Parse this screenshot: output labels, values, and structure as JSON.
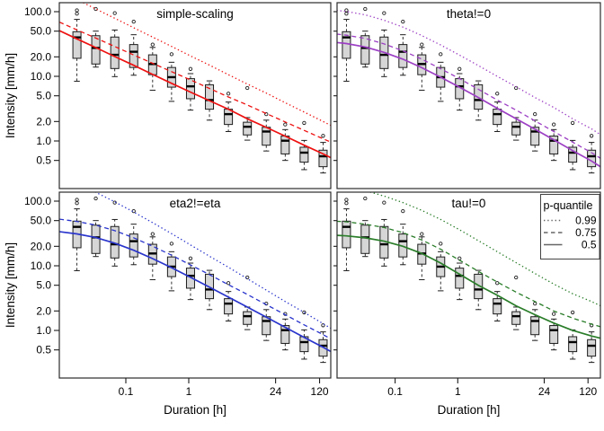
{
  "titles": {
    "y_axis": "Intensity [mm/h]",
    "x_axis": "Duration [h]"
  },
  "legend": {
    "title": "p-quantile",
    "line_color": "#666666",
    "entries": [
      {
        "label": "0.99",
        "style": "dotted"
      },
      {
        "label": "0.75",
        "style": "dashed"
      },
      {
        "label": "0.5",
        "style": "solid"
      }
    ]
  },
  "axes": {
    "x_ticks": [
      {
        "v": 0.1,
        "label": "0.1"
      },
      {
        "v": 1,
        "label": "1"
      },
      {
        "v": 24,
        "label": "24"
      },
      {
        "v": 120,
        "label": "120"
      }
    ],
    "y_ticks": [
      {
        "v": 100,
        "label": "100.0"
      },
      {
        "v": 50,
        "label": "50.0"
      },
      {
        "v": 20,
        "label": "20.0"
      },
      {
        "v": 10,
        "label": "10.0"
      },
      {
        "v": 5,
        "label": "5.0"
      },
      {
        "v": 2,
        "label": "2.0"
      },
      {
        "v": 1,
        "label": "1.0"
      },
      {
        "v": 0.5,
        "label": "0.5"
      }
    ]
  },
  "style": {
    "box_fill": "#d6d6d6",
    "box_stroke": "#1c1c1c",
    "panel_border": "#2b2b2b",
    "tick_color": "#1c1c1c"
  },
  "chart_data": {
    "type": "boxplot",
    "x_scale": "log",
    "y_scale": "log",
    "xlabel": "Duration [h]",
    "ylabel": "Intensity [mm/h]",
    "x_range_h": [
      0.0088,
      190
    ],
    "y_range_mmh": [
      0.186,
      138
    ],
    "boxplots": [
      {
        "d": 0.0167,
        "median": 40,
        "q1": 19,
        "q3": 49,
        "whisker_low": 8.4,
        "whisker_high": 76,
        "outliers": [
          105,
          93
        ]
      },
      {
        "d": 0.0333,
        "median": 27.5,
        "q1": 15.5,
        "q3": 42.5,
        "whisker_low": 13.9,
        "whisker_high": 50,
        "outliers": [
          110
        ]
      },
      {
        "d": 0.0667,
        "median": 21.5,
        "q1": 13.2,
        "q3": 40.5,
        "whisker_low": 9.9,
        "whisker_high": 52,
        "outliers": [
          95
        ]
      },
      {
        "d": 0.1333,
        "median": 24,
        "q1": 13.7,
        "q3": 31,
        "whisker_low": 10.4,
        "whisker_high": 44,
        "outliers": [
          70
        ]
      },
      {
        "d": 0.2667,
        "median": 15.5,
        "q1": 10.6,
        "q3": 21.5,
        "whisker_low": 6.1,
        "whisker_high": 28,
        "outliers": [
          31
        ]
      },
      {
        "d": 0.5333,
        "median": 9.7,
        "q1": 6.8,
        "q3": 13.7,
        "whisker_low": 4.1,
        "whisker_high": 16.5,
        "outliers": [
          22
        ]
      },
      {
        "d": 1.0667,
        "median": 7.0,
        "q1": 4.5,
        "q3": 9.2,
        "whisker_low": 3.0,
        "whisker_high": 11,
        "outliers": [
          13
        ]
      },
      {
        "d": 2.1333,
        "median": 4.3,
        "q1": 3.1,
        "q3": 7.4,
        "whisker_low": 2.1,
        "whisker_high": 8.5,
        "outliers": []
      },
      {
        "d": 4.2667,
        "median": 2.6,
        "q1": 1.8,
        "q3": 3.1,
        "whisker_low": 1.4,
        "whisker_high": 4.0,
        "outliers": [
          5.4
        ]
      },
      {
        "d": 8.5333,
        "median": 1.66,
        "q1": 1.24,
        "q3": 1.95,
        "whisker_low": 1.03,
        "whisker_high": 2.3,
        "outliers": [
          6.6
        ]
      },
      {
        "d": 17.0667,
        "median": 1.4,
        "q1": 0.86,
        "q3": 1.63,
        "whisker_low": 0.7,
        "whisker_high": 2.1,
        "outliers": [
          2.6
        ]
      },
      {
        "d": 34.1333,
        "median": 1.01,
        "q1": 0.63,
        "q3": 1.19,
        "whisker_low": 0.5,
        "whisker_high": 1.5,
        "outliers": [
          1.8
        ]
      },
      {
        "d": 68.2667,
        "median": 0.66,
        "q1": 0.47,
        "q3": 0.8,
        "whisker_low": 0.36,
        "whisker_high": 1.02,
        "outliers": [
          1.9
        ]
      },
      {
        "d": 136.5333,
        "median": 0.58,
        "q1": 0.4,
        "q3": 0.72,
        "whisker_low": 0.32,
        "whisker_high": 0.95,
        "outliers": [
          1.2
        ]
      }
    ],
    "curve_durations_h": [
      0.0088,
      0.0167,
      0.0333,
      0.0667,
      0.1333,
      0.2667,
      0.5333,
      1.0667,
      2.1333,
      4.2667,
      8.5333,
      17.0667,
      34.1333,
      68.2667,
      136.5333,
      190
    ],
    "panels": [
      {
        "title": "simple-scaling",
        "color": "#ee1111",
        "q50": [
          50.9,
          37.9,
          27.8,
          20.2,
          14.8,
          10.7,
          7.8,
          5.7,
          4.2,
          3.1,
          2.2,
          1.62,
          1.19,
          0.86,
          0.63,
          0.54
        ],
        "q75": [
          68.9,
          52.3,
          39.0,
          28.9,
          21.4,
          15.9,
          11.8,
          8.8,
          6.5,
          4.8,
          3.6,
          2.65,
          1.97,
          1.46,
          1.08,
          0.94
        ],
        "q99": [
          209,
          154,
          110,
          79,
          56.5,
          40.4,
          29.0,
          20.7,
          14.9,
          10.6,
          7.6,
          5.5,
          3.9,
          2.8,
          2.0,
          1.7
        ]
      },
      {
        "title": "theta!=0",
        "color": "#9c3fc4",
        "q50": [
          34.4,
          32.1,
          28.5,
          23.5,
          18.4,
          13.6,
          9.7,
          6.8,
          4.7,
          3.2,
          2.2,
          1.52,
          1.04,
          0.71,
          0.49,
          0.4
        ],
        "q75": [
          46.4,
          43.3,
          38.5,
          31.7,
          24.8,
          18.4,
          13.1,
          9.2,
          6.3,
          4.3,
          3.0,
          2.05,
          1.4,
          0.96,
          0.66,
          0.54
        ],
        "q99": [
          108,
          100.6,
          89.3,
          73.7,
          57.6,
          42.7,
          30.5,
          21.3,
          14.7,
          10.0,
          6.9,
          4.7,
          3.3,
          2.2,
          1.54,
          1.25
        ]
      },
      {
        "title": "eta2!=eta",
        "color": "#2a35cc",
        "q50": [
          33.7,
          31.1,
          27.3,
          22.4,
          17.4,
          12.9,
          9.35,
          6.63,
          4.68,
          3.28,
          2.3,
          1.6,
          1.12,
          0.78,
          0.55,
          0.46
        ],
        "q75": [
          52.6,
          48.5,
          42.6,
          34.9,
          27.1,
          20.1,
          14.6,
          10.3,
          7.3,
          5.1,
          3.6,
          2.5,
          1.75,
          1.22,
          0.86,
          0.72
        ],
        "q99": [
          220,
          180,
          137,
          97.5,
          68,
          46.4,
          31.4,
          21.0,
          14.1,
          9.5,
          6.3,
          4.2,
          2.8,
          1.9,
          1.27,
          1.05
        ]
      },
      {
        "title": "tau!=0",
        "color": "#2a7d2a",
        "q50": [
          30,
          29,
          27,
          24,
          20,
          15.5,
          11,
          7.4,
          5.0,
          3.5,
          2.4,
          1.75,
          1.3,
          1.0,
          0.82,
          0.76
        ],
        "q75": [
          49.5,
          48,
          44,
          39,
          32.5,
          25,
          18,
          12.2,
          8.2,
          5.6,
          3.9,
          2.8,
          2.0,
          1.55,
          1.25,
          1.14
        ],
        "q99": [
          170,
          160,
          145,
          120,
          95,
          72,
          52,
          36,
          24.5,
          16.5,
          11.2,
          7.6,
          5.2,
          3.7,
          2.8,
          2.4
        ]
      }
    ]
  }
}
